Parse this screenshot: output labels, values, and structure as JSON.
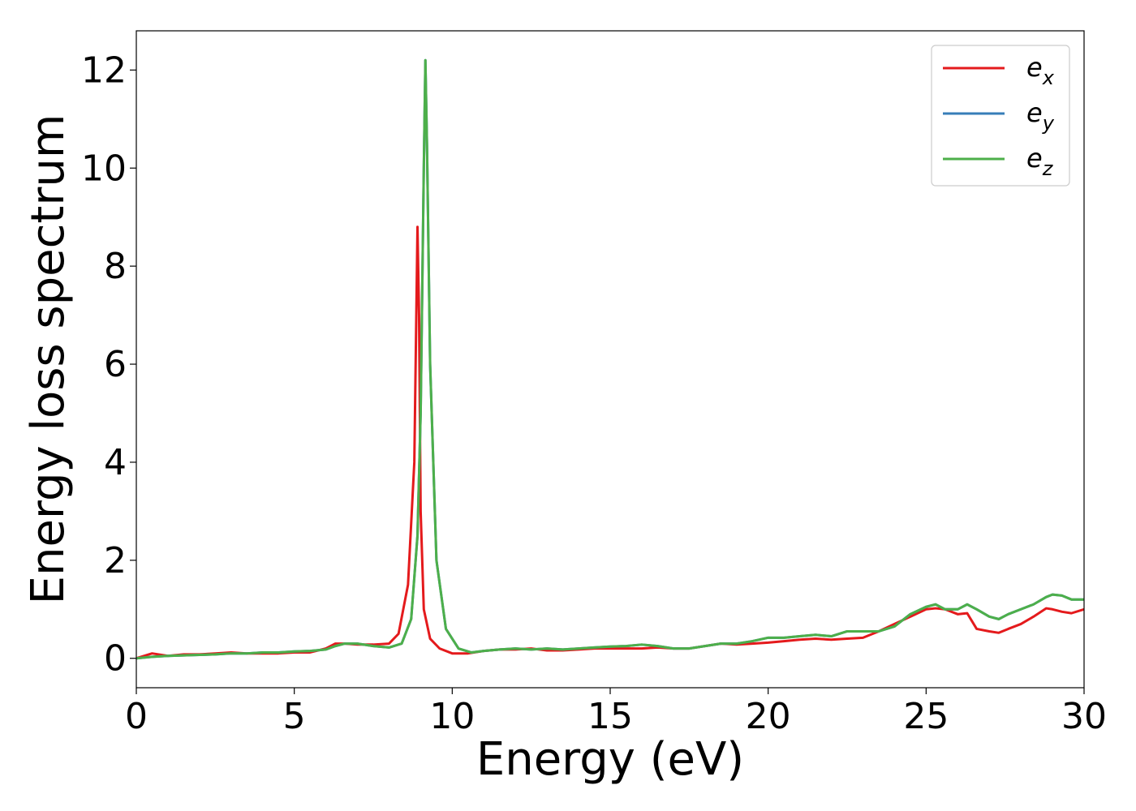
{
  "chart_data": {
    "type": "line",
    "xlabel": "Energy (eV)",
    "ylabel": "Energy loss spectrum",
    "xlim": [
      0,
      30
    ],
    "ylim": [
      -0.6,
      12.8
    ],
    "xticks": [
      0,
      5,
      10,
      15,
      20,
      25,
      30
    ],
    "yticks": [
      0,
      2,
      4,
      6,
      8,
      10,
      12
    ],
    "grid": false,
    "legend_position": "top-right",
    "series": [
      {
        "name": "e",
        "subscript": "x",
        "color": "#e41a1c",
        "x": [
          0,
          0.5,
          1,
          1.5,
          2,
          2.5,
          3,
          3.5,
          4,
          4.5,
          5,
          5.5,
          6,
          6.3,
          6.6,
          7,
          7.5,
          8,
          8.3,
          8.6,
          8.8,
          8.9,
          8.95,
          9.0,
          9.1,
          9.3,
          9.6,
          10,
          10.5,
          11,
          11.5,
          12,
          12.5,
          13,
          13.5,
          14,
          14.5,
          15,
          15.5,
          16,
          16.5,
          17,
          17.5,
          18,
          18.5,
          19,
          19.5,
          20,
          20.5,
          21,
          21.5,
          22,
          22.5,
          23,
          23.5,
          24,
          24.5,
          25,
          25.3,
          25.6,
          26,
          26.3,
          26.6,
          27,
          27.3,
          27.6,
          28,
          28.4,
          28.8,
          29,
          29.3,
          29.6,
          30
        ],
        "y": [
          0.0,
          0.1,
          0.05,
          0.08,
          0.08,
          0.1,
          0.12,
          0.1,
          0.1,
          0.1,
          0.12,
          0.12,
          0.2,
          0.3,
          0.3,
          0.28,
          0.28,
          0.3,
          0.5,
          1.5,
          4.0,
          8.8,
          7.0,
          3.0,
          1.0,
          0.4,
          0.2,
          0.1,
          0.1,
          0.15,
          0.18,
          0.18,
          0.2,
          0.16,
          0.16,
          0.18,
          0.2,
          0.2,
          0.2,
          0.2,
          0.22,
          0.2,
          0.2,
          0.25,
          0.3,
          0.28,
          0.3,
          0.32,
          0.35,
          0.38,
          0.4,
          0.38,
          0.4,
          0.42,
          0.55,
          0.7,
          0.85,
          1.0,
          1.02,
          1.0,
          0.9,
          0.92,
          0.6,
          0.55,
          0.52,
          0.6,
          0.7,
          0.85,
          1.02,
          1.0,
          0.95,
          0.92,
          1.0
        ]
      },
      {
        "name": "e",
        "subscript": "y",
        "color": "#377eb8",
        "x": [
          0,
          0.5,
          1,
          1.5,
          2,
          2.5,
          3,
          3.5,
          4,
          4.5,
          5,
          5.5,
          6,
          6.3,
          6.6,
          7,
          7.5,
          8,
          8.4,
          8.7,
          8.9,
          9.0,
          9.1,
          9.15,
          9.2,
          9.3,
          9.5,
          9.8,
          10.2,
          10.6,
          11,
          11.5,
          12,
          12.5,
          13,
          13.5,
          14,
          14.5,
          15,
          15.5,
          16,
          16.5,
          17,
          17.5,
          18,
          18.5,
          19,
          19.5,
          20,
          20.5,
          21,
          21.5,
          22,
          22.5,
          23,
          23.5,
          24,
          24.5,
          25,
          25.3,
          25.6,
          26,
          26.3,
          26.6,
          27,
          27.3,
          27.6,
          28,
          28.4,
          28.8,
          29,
          29.3,
          29.6,
          30
        ],
        "y": [
          0.0,
          0.03,
          0.05,
          0.06,
          0.07,
          0.08,
          0.1,
          0.1,
          0.12,
          0.12,
          0.14,
          0.15,
          0.18,
          0.25,
          0.3,
          0.3,
          0.25,
          0.22,
          0.3,
          0.8,
          2.5,
          5.0,
          10.0,
          12.2,
          10.5,
          6.0,
          2.0,
          0.6,
          0.2,
          0.12,
          0.15,
          0.18,
          0.2,
          0.18,
          0.2,
          0.18,
          0.2,
          0.22,
          0.24,
          0.25,
          0.28,
          0.25,
          0.2,
          0.2,
          0.25,
          0.3,
          0.3,
          0.35,
          0.42,
          0.42,
          0.45,
          0.48,
          0.45,
          0.55,
          0.55,
          0.55,
          0.65,
          0.9,
          1.05,
          1.1,
          1.0,
          1.0,
          1.1,
          1.0,
          0.85,
          0.8,
          0.9,
          1.0,
          1.1,
          1.25,
          1.3,
          1.28,
          1.2,
          1.2
        ]
      },
      {
        "name": "e",
        "subscript": "z",
        "color": "#4daf4a",
        "x": [
          0,
          0.5,
          1,
          1.5,
          2,
          2.5,
          3,
          3.5,
          4,
          4.5,
          5,
          5.5,
          6,
          6.3,
          6.6,
          7,
          7.5,
          8,
          8.4,
          8.7,
          8.9,
          9.0,
          9.1,
          9.15,
          9.2,
          9.3,
          9.5,
          9.8,
          10.2,
          10.6,
          11,
          11.5,
          12,
          12.5,
          13,
          13.5,
          14,
          14.5,
          15,
          15.5,
          16,
          16.5,
          17,
          17.5,
          18,
          18.5,
          19,
          19.5,
          20,
          20.5,
          21,
          21.5,
          22,
          22.5,
          23,
          23.5,
          24,
          24.5,
          25,
          25.3,
          25.6,
          26,
          26.3,
          26.6,
          27,
          27.3,
          27.6,
          28,
          28.4,
          28.8,
          29,
          29.3,
          29.6,
          30
        ],
        "y": [
          0.0,
          0.03,
          0.05,
          0.06,
          0.07,
          0.08,
          0.1,
          0.1,
          0.12,
          0.12,
          0.14,
          0.15,
          0.18,
          0.25,
          0.3,
          0.3,
          0.25,
          0.22,
          0.3,
          0.8,
          2.5,
          5.0,
          10.0,
          12.2,
          10.5,
          6.0,
          2.0,
          0.6,
          0.2,
          0.12,
          0.15,
          0.18,
          0.2,
          0.18,
          0.2,
          0.18,
          0.2,
          0.22,
          0.24,
          0.25,
          0.28,
          0.25,
          0.2,
          0.2,
          0.25,
          0.3,
          0.3,
          0.35,
          0.42,
          0.42,
          0.45,
          0.48,
          0.45,
          0.55,
          0.55,
          0.55,
          0.65,
          0.9,
          1.05,
          1.1,
          1.0,
          1.0,
          1.1,
          1.0,
          0.85,
          0.8,
          0.9,
          1.0,
          1.1,
          1.25,
          1.3,
          1.28,
          1.2,
          1.2
        ]
      }
    ]
  }
}
